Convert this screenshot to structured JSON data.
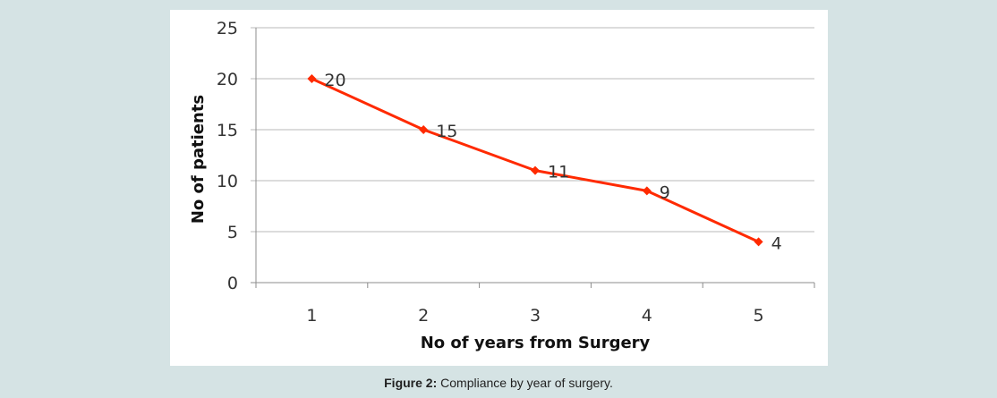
{
  "chart_data": {
    "type": "line",
    "title": "",
    "xlabel": "No of years from Surgery",
    "ylabel": "No of patients",
    "categories": [
      "1",
      "2",
      "3",
      "4",
      "5"
    ],
    "series": [
      {
        "values": [
          20,
          15,
          11,
          9,
          4
        ]
      }
    ],
    "data_labels": [
      "20",
      "15",
      "11",
      "9",
      "4"
    ],
    "y_ticks": [
      "0",
      "5",
      "10",
      "15",
      "20",
      "25"
    ],
    "ylim": [
      0,
      25
    ],
    "grid": "horizontal",
    "legend": "none",
    "colors": {
      "series": "#ff2a00",
      "marker": "#ff2a00",
      "grid": "#b8b8b8",
      "axis": "#8c8c8c",
      "plot_background": "#ffffff",
      "page_background": "#d5e3e4"
    }
  },
  "caption": {
    "lead": "Figure 2:",
    "text": " Compliance by year of surgery."
  }
}
